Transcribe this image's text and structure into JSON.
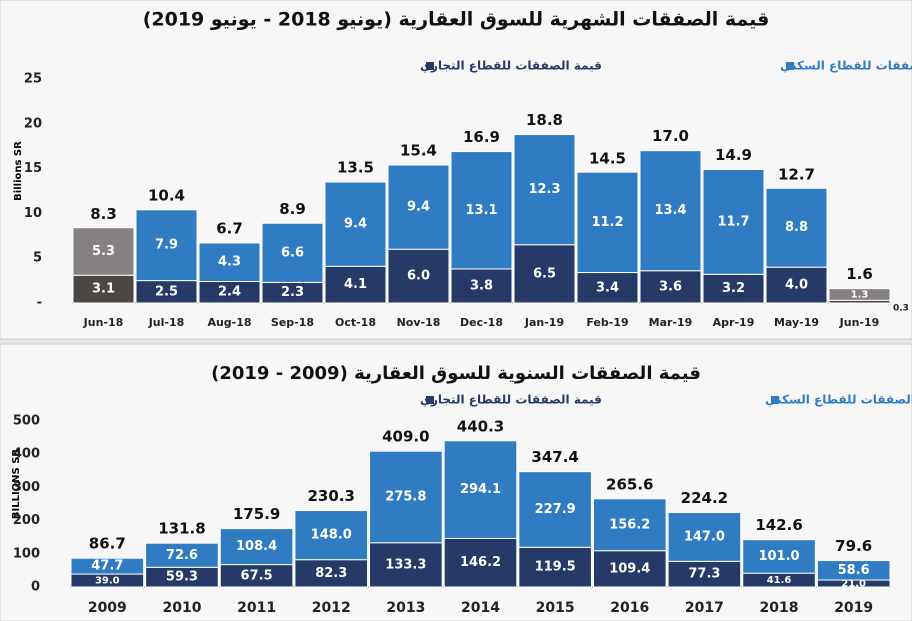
{
  "chart_data": [
    {
      "type": "stacked_bar",
      "title": "قيمة الصفقات الشهرية للسوق العقارية (يونيو 2018 - يونيو 2019)",
      "y_label": "Billions SR",
      "categories": [
        "Jun-18",
        "Jul-18",
        "Aug-18",
        "Sep-18",
        "Oct-18",
        "Nov-18",
        "Dec-18",
        "Jan-19",
        "Feb-19",
        "Mar-19",
        "Apr-19",
        "May-19",
        "Jun-19"
      ],
      "series": [
        {
          "name": "قيمة الصفقات للقطاع التجاري",
          "color": "#253a66",
          "colors": [
            "#4b4745",
            "#253a66",
            "#253a66",
            "#253a66",
            "#253a66",
            "#253a66",
            "#253a66",
            "#253a66",
            "#253a66",
            "#253a66",
            "#253a66",
            "#253a66",
            "#4b4745"
          ],
          "values": [
            3.1,
            2.5,
            2.4,
            2.3,
            4.1,
            6.0,
            3.8,
            6.5,
            3.4,
            3.6,
            3.2,
            4.0,
            0.3
          ],
          "value_labels": [
            "3.1",
            "2.5",
            "2.4",
            "2.3",
            "4.1",
            "6.0",
            "3.8",
            "6.5",
            "3.4",
            "3.6",
            "3.2",
            "4.0",
            "0.3"
          ]
        },
        {
          "name": "قيمة الصفقات للقطاع السكني",
          "color": "#2f7cc3",
          "colors": [
            "#858180",
            "#2f7cc3",
            "#2f7cc3",
            "#2f7cc3",
            "#2f7cc3",
            "#2f7cc3",
            "#2f7cc3",
            "#2f7cc3",
            "#2f7cc3",
            "#2f7cc3",
            "#2f7cc3",
            "#2f7cc3",
            "#858180"
          ],
          "values": [
            5.3,
            7.9,
            4.3,
            6.6,
            9.4,
            9.4,
            13.1,
            12.3,
            11.2,
            13.4,
            11.7,
            8.8,
            1.3
          ],
          "value_labels": [
            "5.3",
            "7.9",
            "4.3",
            "6.6",
            "9.4",
            "9.4",
            "13.1",
            "12.3",
            "11.2",
            "13.4",
            "11.7",
            "8.8",
            "1.3"
          ]
        }
      ],
      "totals": [
        8.3,
        10.4,
        6.7,
        8.9,
        13.5,
        15.4,
        16.9,
        18.8,
        14.5,
        17.0,
        14.9,
        12.7,
        1.6
      ],
      "total_labels": [
        "8.3",
        "10.4",
        "6.7",
        "8.9",
        "13.5",
        "15.4",
        "16.9",
        "18.8",
        "14.5",
        "17.0",
        "14.9",
        "12.7",
        "1.6"
      ],
      "ylim": [
        0,
        25
      ],
      "yticks": [
        {
          "value": 0,
          "label": "-"
        },
        5,
        10,
        15,
        20,
        25
      ]
    },
    {
      "type": "stacked_bar",
      "title": "قيمة الصفقات السنوية للسوق العقارية (2009 - 2019)",
      "y_label": "BILLIONS SR",
      "categories": [
        "2009",
        "2010",
        "2011",
        "2012",
        "2013",
        "2014",
        "2015",
        "2016",
        "2017",
        "2018",
        "2019"
      ],
      "series": [
        {
          "name": "قيمة الصفقات للقطاع التجاري",
          "color": "#253a66",
          "values": [
            39.0,
            59.3,
            67.5,
            82.3,
            133.3,
            146.2,
            119.5,
            109.4,
            77.3,
            41.6,
            21.0
          ],
          "value_labels": [
            "39.0",
            "59.3",
            "67.5",
            "82.3",
            "133.3",
            "146.2",
            "119.5",
            "109.4",
            "77.3",
            "41.6",
            "21.0"
          ]
        },
        {
          "name": "قيمة الصفقات للقطاع السكني",
          "color": "#2f7cc3",
          "values": [
            47.7,
            72.6,
            108.4,
            148.0,
            275.8,
            294.1,
            227.9,
            156.2,
            147.0,
            101.0,
            58.6
          ],
          "value_labels": [
            "47.7",
            "72.6",
            "108.4",
            "148.0",
            "275.8",
            "294.1",
            "227.9",
            "156.2",
            "147.0",
            "101.0",
            "58.6"
          ]
        }
      ],
      "totals": [
        86.7,
        131.8,
        175.9,
        230.3,
        409.0,
        440.3,
        347.4,
        265.6,
        224.2,
        142.6,
        79.6
      ],
      "total_labels": [
        "86.7",
        "131.8",
        "175.9",
        "230.3",
        "409.0",
        "440.3",
        "347.4",
        "265.6",
        "224.2",
        "142.6",
        "79.6"
      ],
      "ylim": [
        0,
        500
      ],
      "yticks": [
        0,
        100,
        200,
        300,
        400,
        500
      ]
    }
  ]
}
